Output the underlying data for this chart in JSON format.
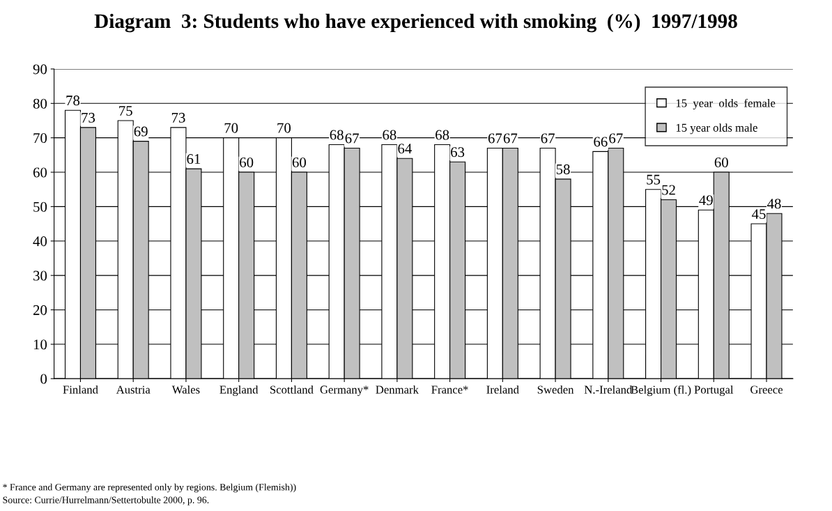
{
  "chart_data": {
    "type": "bar",
    "title": "Diagram  3: Students who have experienced with smoking  (%)  1997/1998",
    "categories": [
      "Finland",
      "Austria",
      "Wales",
      "England",
      "Scottland",
      "Germany*",
      "Denmark",
      "France*",
      "Ireland",
      "Sweden",
      "N.-Ireland",
      "Belgium (fl.)",
      "Portugal",
      "Greece"
    ],
    "series": [
      {
        "name": "15  year  olds  female",
        "color": "#ffffff",
        "values": [
          78,
          75,
          73,
          70,
          70,
          68,
          68,
          68,
          67,
          67,
          66,
          55,
          49,
          45
        ]
      },
      {
        "name": "15 year olds male",
        "color": "#c0c0c0",
        "values": [
          73,
          69,
          61,
          60,
          60,
          67,
          64,
          63,
          67,
          58,
          67,
          52,
          60,
          48
        ]
      }
    ],
    "ylim": [
      0,
      90
    ],
    "yticks": [
      0,
      10,
      20,
      30,
      40,
      50,
      60,
      70,
      80,
      90
    ],
    "grid": "y",
    "legend": "top right",
    "data_labels": true,
    "annotations": [
      "* France and Germany are represented only by regions. Belgium (Flemish))",
      "Source: Currie/Hurrelmann/Settertobulte 2000, p. 96."
    ]
  }
}
